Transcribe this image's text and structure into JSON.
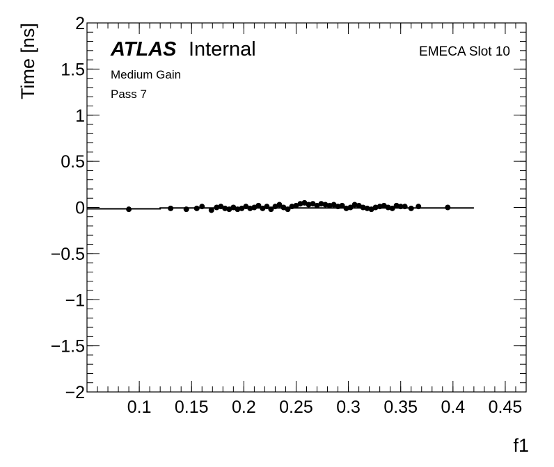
{
  "chart_data": {
    "type": "scatter",
    "xlabel": "f1",
    "ylabel": "Time [ns]",
    "xlim": [
      0.05,
      0.47
    ],
    "ylim": [
      -2,
      2
    ],
    "x_ticks": [
      0.1,
      0.15,
      0.2,
      0.25,
      0.3,
      0.35,
      0.4,
      0.45
    ],
    "x_tick_labels": [
      "0.1",
      "0.15",
      "0.2",
      "0.25",
      "0.3",
      "0.35",
      "0.4",
      "0.45"
    ],
    "y_ticks": [
      -2,
      -1.5,
      -1,
      -0.5,
      0,
      0.5,
      1,
      1.5,
      2
    ],
    "y_tick_labels": [
      "−2",
      "−1.5",
      "−1",
      "−0.5",
      "0",
      "0.5",
      "1",
      "1.5",
      "2"
    ],
    "grid": false,
    "series": [
      {
        "x": [
          0.09,
          0.13,
          0.145,
          0.155,
          0.16,
          0.169,
          0.174,
          0.178,
          0.182,
          0.186,
          0.19,
          0.194,
          0.198,
          0.202,
          0.206,
          0.21,
          0.214,
          0.218,
          0.222,
          0.226,
          0.23,
          0.234,
          0.238,
          0.242,
          0.246,
          0.25,
          0.254,
          0.258,
          0.262,
          0.266,
          0.27,
          0.274,
          0.278,
          0.282,
          0.286,
          0.29,
          0.294,
          0.298,
          0.302,
          0.306,
          0.31,
          0.314,
          0.318,
          0.322,
          0.326,
          0.33,
          0.334,
          0.338,
          0.342,
          0.346,
          0.35,
          0.354,
          0.36,
          0.367,
          0.395
        ],
        "y": [
          -0.02,
          -0.01,
          -0.02,
          -0.01,
          0.01,
          -0.03,
          0.0,
          0.01,
          -0.01,
          -0.02,
          0.0,
          -0.02,
          -0.01,
          0.01,
          -0.01,
          0.0,
          0.02,
          -0.01,
          0.01,
          -0.02,
          0.01,
          0.03,
          0.0,
          -0.02,
          0.01,
          0.02,
          0.04,
          0.05,
          0.03,
          0.04,
          0.02,
          0.04,
          0.03,
          0.02,
          0.03,
          0.01,
          0.02,
          -0.01,
          0.0,
          0.03,
          0.02,
          0.0,
          -0.01,
          -0.02,
          0.0,
          0.01,
          0.02,
          0.0,
          -0.01,
          0.02,
          0.01,
          0.01,
          -0.01,
          0.01,
          0.0
        ],
        "y_err": [
          0.01,
          0.01,
          0.01,
          0.01,
          0.01,
          0.01,
          0.01,
          0.01,
          0.01,
          0.01,
          0.01,
          0.01,
          0.01,
          0.01,
          0.01,
          0.01,
          0.01,
          0.01,
          0.01,
          0.01,
          0.01,
          0.01,
          0.01,
          0.01,
          0.01,
          0.02,
          0.02,
          0.02,
          0.02,
          0.02,
          0.02,
          0.02,
          0.02,
          0.02,
          0.02,
          0.02,
          0.02,
          0.02,
          0.02,
          0.02,
          0.02,
          0.02,
          0.02,
          0.02,
          0.02,
          0.01,
          0.01,
          0.01,
          0.01,
          0.01,
          0.01,
          0.01,
          0.01,
          0.01,
          0.01
        ]
      }
    ],
    "fit_line": {
      "x": [
        0.05,
        0.12,
        0.12,
        0.42
      ],
      "y": [
        -0.015,
        -0.015,
        -0.005,
        -0.005
      ]
    },
    "annotations": {
      "atlas": "ATLAS",
      "internal": "Internal",
      "gain": "Medium Gain",
      "pass": "Pass 7",
      "slot": "EMECA Slot 10"
    }
  }
}
